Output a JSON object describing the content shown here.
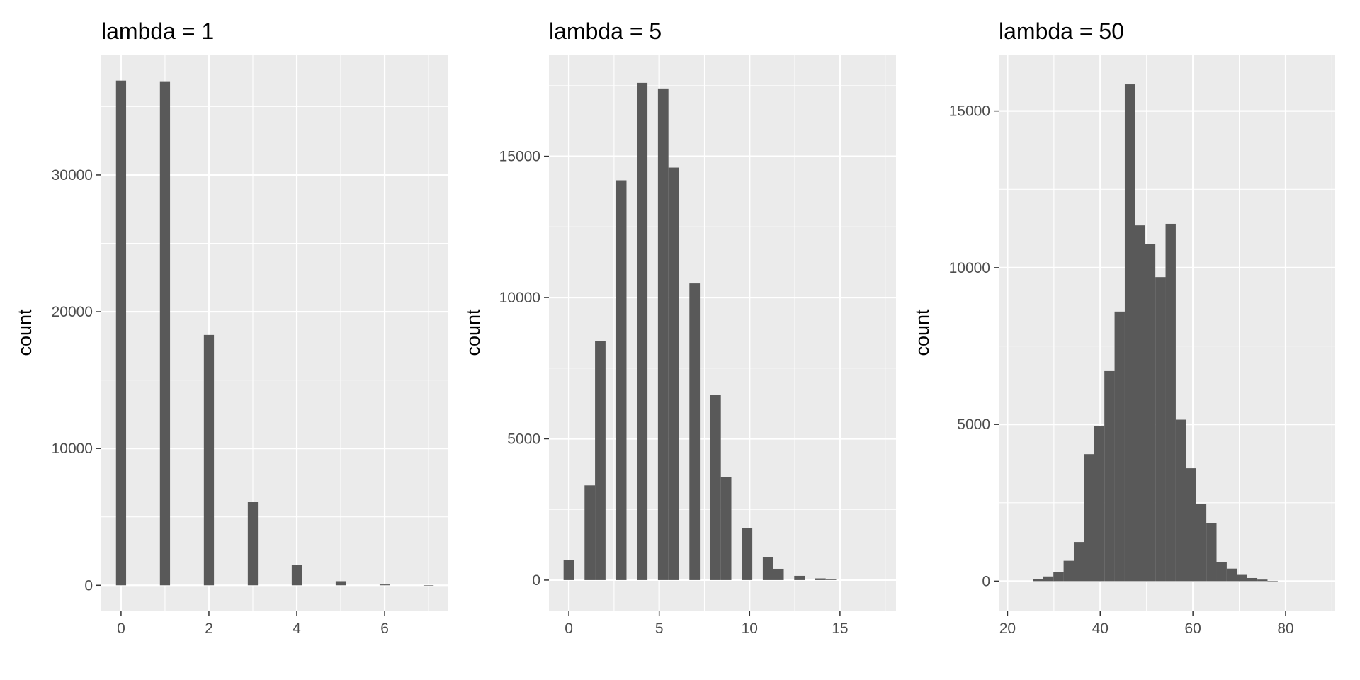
{
  "chart_data": [
    {
      "type": "bar",
      "title": "lambda = 1",
      "xlabel": "",
      "ylabel": "count",
      "xlim": [
        -0.45,
        7.45
      ],
      "ylim": [
        -1850,
        38800
      ],
      "xticks": [
        0,
        2,
        4,
        6
      ],
      "xminor": [
        1,
        3,
        5,
        7
      ],
      "yticks": [
        0,
        10000,
        20000,
        30000
      ],
      "yminor": [
        5000,
        15000,
        25000,
        35000
      ],
      "bar_width": 0.23,
      "bars": [
        {
          "x": 0,
          "y": 36900
        },
        {
          "x": 1,
          "y": 36800
        },
        {
          "x": 2,
          "y": 18300
        },
        {
          "x": 3,
          "y": 6100
        },
        {
          "x": 4,
          "y": 1500
        },
        {
          "x": 5,
          "y": 300
        },
        {
          "x": 6,
          "y": 60
        },
        {
          "x": 7,
          "y": 10
        }
      ]
    },
    {
      "type": "bar",
      "title": "lambda = 5",
      "xlabel": "",
      "ylabel": "count",
      "xlim": [
        -1.1,
        18.1
      ],
      "ylim": [
        -1080,
        18600
      ],
      "xticks": [
        0,
        5,
        10,
        15
      ],
      "xminor": [
        2.5,
        7.5,
        12.5,
        17.5
      ],
      "yticks": [
        0,
        5000,
        10000,
        15000
      ],
      "yminor": [
        2500,
        7500,
        12500,
        17500
      ],
      "bar_width": 0.58,
      "bars": [
        {
          "x": 0,
          "y": 700
        },
        {
          "x": 1.16,
          "y": 3350
        },
        {
          "x": 1.74,
          "y": 8450
        },
        {
          "x": 2.9,
          "y": 14150
        },
        {
          "x": 4.06,
          "y": 17600
        },
        {
          "x": 5.22,
          "y": 17400
        },
        {
          "x": 5.8,
          "y": 14600
        },
        {
          "x": 6.96,
          "y": 10500
        },
        {
          "x": 8.12,
          "y": 6550
        },
        {
          "x": 8.7,
          "y": 3650
        },
        {
          "x": 9.86,
          "y": 1850
        },
        {
          "x": 11.02,
          "y": 800
        },
        {
          "x": 11.6,
          "y": 400
        },
        {
          "x": 12.76,
          "y": 150
        },
        {
          "x": 13.92,
          "y": 60
        },
        {
          "x": 14.5,
          "y": 20
        }
      ]
    },
    {
      "type": "bar",
      "title": "lambda = 50",
      "xlabel": "",
      "ylabel": "count",
      "xlim": [
        18.1,
        90.7
      ],
      "ylim": [
        -940,
        16800
      ],
      "xticks": [
        20,
        40,
        60,
        80
      ],
      "xminor": [
        30,
        50,
        70,
        90
      ],
      "yticks": [
        0,
        5000,
        10000,
        15000
      ],
      "yminor": [
        2500,
        7500,
        12500
      ],
      "bar_width": 2.2,
      "bars": [
        {
          "x": 26.6,
          "y": 60
        },
        {
          "x": 28.8,
          "y": 150
        },
        {
          "x": 31.0,
          "y": 300
        },
        {
          "x": 33.2,
          "y": 650
        },
        {
          "x": 35.4,
          "y": 1250
        },
        {
          "x": 37.6,
          "y": 4050
        },
        {
          "x": 39.8,
          "y": 4950
        },
        {
          "x": 42.0,
          "y": 6700
        },
        {
          "x": 44.2,
          "y": 8600
        },
        {
          "x": 46.4,
          "y": 15850
        },
        {
          "x": 48.6,
          "y": 11350
        },
        {
          "x": 50.8,
          "y": 10750
        },
        {
          "x": 53.0,
          "y": 9700
        },
        {
          "x": 55.2,
          "y": 11400
        },
        {
          "x": 57.4,
          "y": 5150
        },
        {
          "x": 59.6,
          "y": 3600
        },
        {
          "x": 61.8,
          "y": 2450
        },
        {
          "x": 64.0,
          "y": 1850
        },
        {
          "x": 66.2,
          "y": 600
        },
        {
          "x": 68.4,
          "y": 400
        },
        {
          "x": 70.6,
          "y": 200
        },
        {
          "x": 72.8,
          "y": 100
        },
        {
          "x": 75.0,
          "y": 50
        },
        {
          "x": 77.2,
          "y": 10
        }
      ]
    }
  ],
  "colors": {
    "panel_background": "#ebebeb",
    "grid": "#ffffff",
    "bar_fill": "#595959",
    "tick_text": "#4d4d4d",
    "tick_mark": "#333333"
  }
}
